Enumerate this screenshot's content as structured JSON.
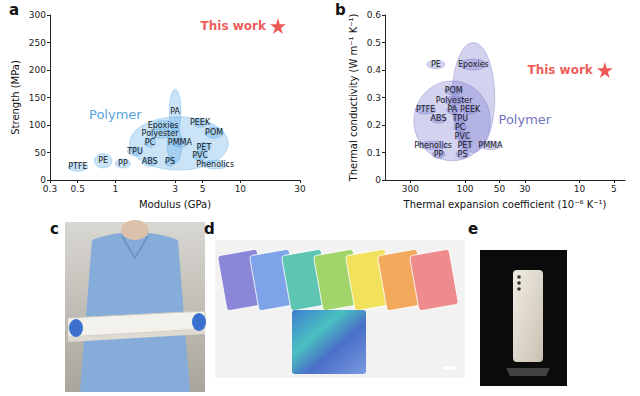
{
  "chart_data": [
    {
      "panel": "a",
      "type": "scatter",
      "x_label": "Modulus (GPa)",
      "y_label": "Strength (MPa)",
      "log": "x",
      "xlim": [
        0.3,
        30
      ],
      "xticks": [
        0.3,
        0.5,
        1,
        3,
        5,
        10,
        30
      ],
      "ylim": [
        0,
        300
      ],
      "yticks": [
        0,
        50,
        100,
        150,
        200,
        250,
        300
      ],
      "grid": false,
      "series": [
        {
          "type": "region",
          "color": "#4ea3e3",
          "regions": [
            {
              "x": [
                1.3,
                8
              ],
              "y": [
                18,
                115
              ]
            },
            {
              "x": [
                2.6,
                3.4
              ],
              "y": [
                30,
                100
              ]
            },
            {
              "label": "PA",
              "x": [
                2.7,
                3.35
              ],
              "y": [
                85,
                165
              ]
            },
            {
              "label": "Epoxies",
              "x": [
                2.0,
                2.9
              ],
              "y": [
                92,
                108
              ]
            },
            {
              "label": "PEEK",
              "x": [
                4.2,
                5.4
              ],
              "y": [
                96,
                112
              ]
            },
            {
              "label": "POM",
              "x": [
                5.2,
                7.3
              ],
              "y": [
                76,
                96
              ]
            },
            {
              "label": "Polyester",
              "x": [
                1.85,
                2.8
              ],
              "y": [
                76,
                92
              ]
            },
            {
              "label": "PC",
              "x": [
                1.7,
                2.1
              ],
              "y": [
                60,
                76
              ]
            },
            {
              "label": "PMMA",
              "x": [
                2.8,
                3.85
              ],
              "y": [
                60,
                76
              ]
            },
            {
              "label": "PET",
              "x": [
                4.5,
                5.8
              ],
              "y": [
                52,
                68
              ]
            },
            {
              "label": "PVC",
              "x": [
                4.2,
                5.4
              ],
              "y": [
                36,
                52
              ]
            },
            {
              "label": "TPU",
              "x": [
                1.25,
                1.65
              ],
              "y": [
                44,
                60
              ]
            },
            {
              "label": "ABS",
              "x": [
                1.65,
                2.15
              ],
              "y": [
                25,
                41
              ]
            },
            {
              "label": "PS",
              "x": [
                2.5,
                3.0
              ],
              "y": [
                25,
                41
              ]
            },
            {
              "label": "Phenolics",
              "x": [
                5.0,
                7.9
              ],
              "y": [
                20,
                36
              ]
            },
            {
              "label": "PTFE",
              "x": [
                0.42,
                0.6
              ],
              "y": [
                16,
                32
              ]
            },
            {
              "label": "PE",
              "x": [
                0.68,
                0.94
              ],
              "y": [
                22,
                48
              ]
            },
            {
              "label": "PP",
              "x": [
                1.0,
                1.32
              ],
              "y": [
                22,
                38
              ]
            }
          ]
        },
        {
          "name": "This work",
          "type": "scatter",
          "marker": "star",
          "color": "#e8312c",
          "x": [
            20
          ],
          "y": [
            280
          ]
        }
      ],
      "annotations": [
        {
          "text": "Polymer",
          "x": 1.0,
          "y": 120,
          "color": "#2b8ad6"
        }
      ]
    },
    {
      "panel": "b",
      "type": "scatter",
      "x_label": "Thermal expansion coefficient (10⁻⁶ K⁻¹)",
      "y_label": "Thermal conductivity (W m⁻¹ K⁻¹)",
      "log": "x",
      "xlim": [
        500,
        4
      ],
      "xticks": [
        300,
        100,
        50,
        30,
        10,
        5
      ],
      "ylim": [
        0,
        0.6
      ],
      "yticks": [
        0,
        0.1,
        0.2,
        0.3,
        0.4,
        0.5,
        0.6
      ],
      "grid": false,
      "series": [
        {
          "type": "region",
          "color": "#6d6dc9",
          "regions": [
            {
              "x": [
                60,
                280
              ],
              "y": [
                0.07,
                0.36
              ]
            },
            {
              "x": [
                55,
                130
              ],
              "y": [
                0.1,
                0.5
              ]
            },
            {
              "label": "PE",
              "x": [
                150,
                215
              ],
              "y": [
                0.405,
                0.435
              ]
            },
            {
              "label": "Epoxies",
              "x": [
                65,
                110
              ],
              "y": [
                0.4,
                0.44
              ]
            },
            {
              "label": "POM",
              "x": [
                105,
                150
              ],
              "y": [
                0.31,
                0.34
              ]
            },
            {
              "label": "Polyester",
              "x": [
                100,
                155
              ],
              "y": [
                0.275,
                0.305
              ]
            },
            {
              "label": "PTFE",
              "x": [
                180,
                270
              ],
              "y": [
                0.24,
                0.27
              ]
            },
            {
              "label": "PA",
              "x": [
                115,
                145
              ],
              "y": [
                0.24,
                0.27
              ]
            },
            {
              "label": "PEEK",
              "x": [
                78,
                104
              ],
              "y": [
                0.24,
                0.27
              ]
            },
            {
              "label": "TPU",
              "x": [
                97,
                125
              ],
              "y": [
                0.207,
                0.237
              ]
            },
            {
              "label": "ABS",
              "x": [
                145,
                200
              ],
              "y": [
                0.207,
                0.237
              ]
            },
            {
              "label": "PC",
              "x": [
                97,
                125
              ],
              "y": [
                0.175,
                0.205
              ]
            },
            {
              "label": "PVC",
              "x": [
                92,
                120
              ],
              "y": [
                0.143,
                0.173
              ]
            },
            {
              "label": "Phenolics",
              "x": [
                140,
                258
              ],
              "y": [
                0.111,
                0.141
              ]
            },
            {
              "label": "PET",
              "x": [
                88,
                114
              ],
              "y": [
                0.111,
                0.141
              ]
            },
            {
              "label": "PMMA",
              "x": [
                48,
                75
              ],
              "y": [
                0.111,
                0.141
              ]
            },
            {
              "label": "PP",
              "x": [
                150,
                193
              ],
              "y": [
                0.079,
                0.109
              ]
            },
            {
              "label": "PS",
              "x": [
                92,
                120
              ],
              "y": [
                0.079,
                0.109
              ]
            }
          ]
        },
        {
          "name": "This work",
          "type": "scatter",
          "marker": "star",
          "color": "#e8312c",
          "x": [
            6
          ],
          "y": [
            0.4
          ]
        }
      ],
      "annotations": [
        {
          "text": "Polymer",
          "x": 30,
          "y": 0.22,
          "color": "#4b4bb0"
        }
      ]
    }
  ],
  "photos": [
    {
      "panel": "c"
    },
    {
      "panel": "d"
    },
    {
      "panel": "e"
    }
  ]
}
